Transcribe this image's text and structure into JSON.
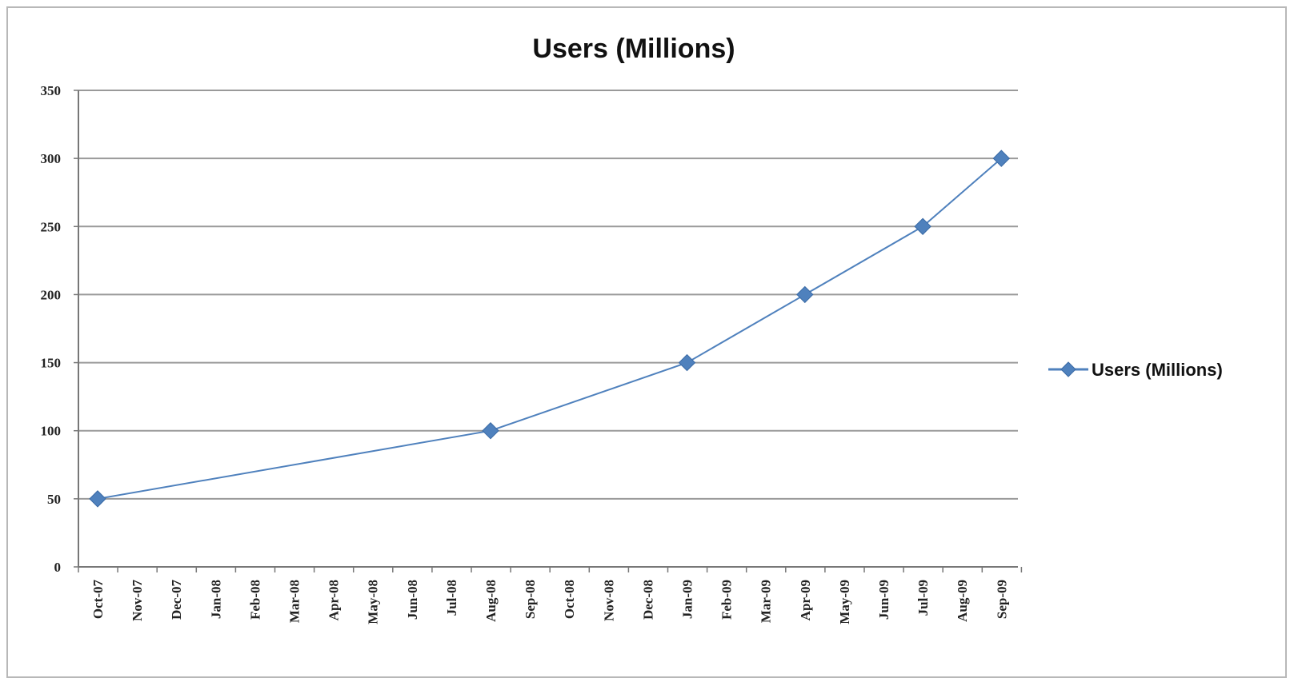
{
  "chart_data": {
    "type": "line",
    "title": "Users (Millions)",
    "xlabel": "",
    "ylabel": "",
    "categories": [
      "Oct-07",
      "Nov-07",
      "Dec-07",
      "Jan-08",
      "Feb-08",
      "Mar-08",
      "Apr-08",
      "May-08",
      "Jun-08",
      "Jul-08",
      "Aug-08",
      "Sep-08",
      "Oct-08",
      "Nov-08",
      "Dec-08",
      "Jan-09",
      "Feb-09",
      "Mar-09",
      "Apr-09",
      "May-09",
      "Jun-09",
      "Jul-09",
      "Aug-09",
      "Sep-09"
    ],
    "series": [
      {
        "name": "Users (Millions)",
        "points": [
          {
            "x": "Oct-07",
            "y": 50
          },
          {
            "x": "Aug-08",
            "y": 100
          },
          {
            "x": "Jan-09",
            "y": 150
          },
          {
            "x": "Apr-09",
            "y": 200
          },
          {
            "x": "Jul-09",
            "y": 250
          },
          {
            "x": "Sep-09",
            "y": 300
          }
        ],
        "color": "#4f81bd",
        "marker": "diamond"
      }
    ],
    "ylim": [
      0,
      350
    ],
    "yticks": [
      "0",
      "50",
      "100",
      "150",
      "200",
      "250",
      "300",
      "350"
    ],
    "grid": true,
    "legend_position": "right"
  }
}
